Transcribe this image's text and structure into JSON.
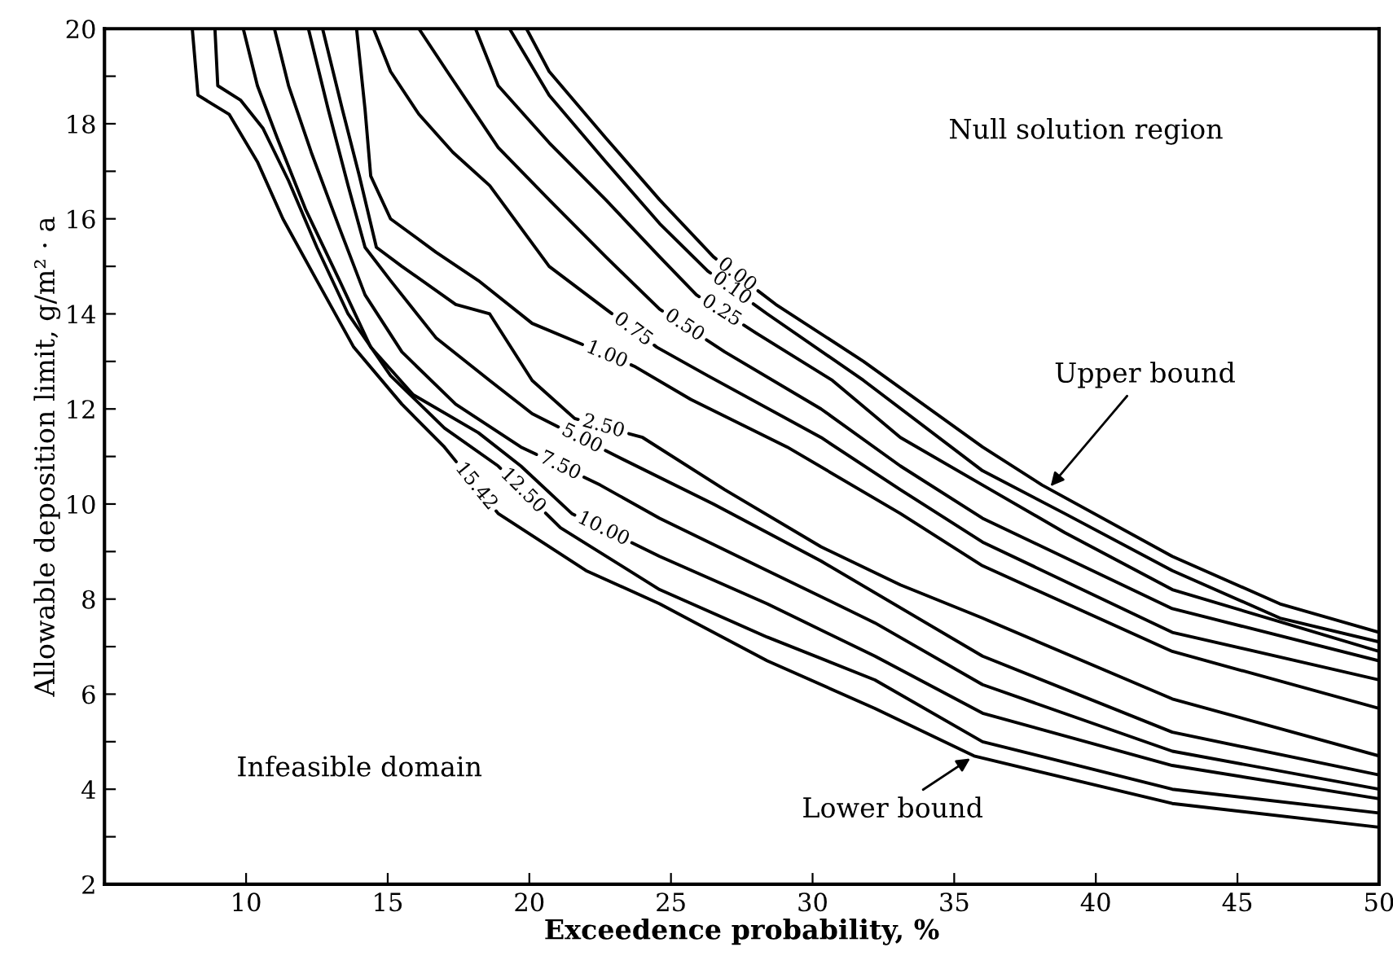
{
  "chart_data": {
    "type": "line",
    "xlabel": "Exceedence probability, %",
    "ylabel": "Allowable deposition limit, g/m² · a",
    "xlim": [
      5,
      50
    ],
    "ylim": [
      2,
      20
    ],
    "xticks": [
      10,
      15,
      20,
      25,
      30,
      35,
      40,
      45,
      50
    ],
    "yticks": [
      2,
      {
        "value": 3,
        "label": null
      },
      4,
      {
        "value": 5,
        "label": null
      },
      6,
      {
        "value": 7,
        "label": null
      },
      8,
      {
        "value": 9,
        "label": null
      },
      10,
      {
        "value": 11,
        "label": null
      },
      12,
      {
        "value": 13,
        "label": null
      },
      14,
      {
        "value": 15,
        "label": null
      },
      16,
      {
        "value": 17,
        "label": null
      },
      18,
      {
        "value": 19,
        "label": null
      },
      20
    ],
    "grid": false,
    "legend": false,
    "marker": "none",
    "line_style": "solid",
    "series": [
      {
        "name": "0.00",
        "color": "#000000",
        "x": [
          19.9,
          20.7,
          22.7,
          24.6,
          26.5,
          28.7,
          31.8,
          36.0,
          38.1,
          42.7,
          46.5,
          50.0
        ],
        "values": [
          20.0,
          19.1,
          17.7,
          16.4,
          15.2,
          14.2,
          13.0,
          11.2,
          10.4,
          8.9,
          7.9,
          7.3
        ]
      },
      {
        "name": "0.10",
        "color": "#000000",
        "x": [
          19.3,
          20.7,
          22.7,
          24.6,
          26.3,
          28.4,
          31.8,
          36.0,
          38.9,
          42.7,
          46.5,
          50.0
        ],
        "values": [
          20.0,
          18.6,
          17.2,
          15.9,
          14.9,
          14.0,
          12.6,
          10.7,
          9.8,
          8.6,
          7.6,
          7.1
        ]
      },
      {
        "name": "0.25",
        "color": "#000000",
        "x": [
          18.1,
          18.9,
          20.7,
          22.7,
          24.6,
          25.9,
          28.0,
          30.7,
          33.1,
          36.0,
          38.9,
          42.7,
          50.0
        ],
        "values": [
          20.0,
          18.8,
          17.6,
          16.4,
          15.2,
          14.4,
          13.6,
          12.6,
          11.4,
          10.4,
          9.4,
          8.2,
          6.9
        ]
      },
      {
        "name": "0.50",
        "color": "#000000",
        "x": [
          16.1,
          17.1,
          18.0,
          18.9,
          20.7,
          22.7,
          24.6,
          26.9,
          30.3,
          33.1,
          36.0,
          42.7,
          50.0
        ],
        "values": [
          20.0,
          19.1,
          18.3,
          17.5,
          16.4,
          15.2,
          14.1,
          13.2,
          12.0,
          10.8,
          9.7,
          7.8,
          6.7
        ]
      },
      {
        "name": "0.75",
        "color": "#000000",
        "x": [
          14.5,
          15.1,
          16.1,
          17.3,
          18.6,
          20.7,
          22.7,
          24.5,
          26.3,
          30.3,
          33.1,
          36.0,
          42.7,
          50.0
        ],
        "values": [
          20.0,
          19.1,
          18.2,
          17.4,
          16.7,
          15.0,
          14.1,
          13.3,
          12.7,
          11.4,
          10.3,
          9.2,
          7.3,
          6.3
        ]
      },
      {
        "name": "1.00",
        "color": "#000000",
        "x": [
          13.9,
          14.2,
          14.4,
          15.1,
          16.7,
          18.2,
          20.1,
          23.7,
          25.7,
          29.1,
          33.1,
          36.0,
          42.7,
          50.0
        ],
        "values": [
          20.0,
          18.3,
          16.9,
          16.0,
          15.3,
          14.7,
          13.8,
          12.9,
          12.2,
          11.2,
          9.8,
          8.7,
          6.9,
          5.7
        ]
      },
      {
        "name": "2.50",
        "color": "#000000",
        "x": [
          12.7,
          13.4,
          14.0,
          14.6,
          15.5,
          17.4,
          18.6,
          20.1,
          21.6,
          24.0,
          26.9,
          30.3,
          33.1,
          36.0,
          42.7,
          50.0
        ],
        "values": [
          20.0,
          18.3,
          16.9,
          15.4,
          15.0,
          14.2,
          14.0,
          12.6,
          11.8,
          11.4,
          10.3,
          9.1,
          8.3,
          7.6,
          5.9,
          4.7
        ]
      },
      {
        "name": "5.00",
        "color": "#000000",
        "x": [
          12.2,
          12.9,
          13.6,
          14.2,
          15.1,
          16.7,
          18.6,
          20.1,
          23.1,
          26.5,
          30.3,
          36.0,
          42.7,
          50.0
        ],
        "values": [
          20.0,
          18.3,
          16.7,
          15.4,
          14.7,
          13.5,
          12.6,
          11.9,
          11.0,
          10.0,
          8.8,
          6.8,
          5.2,
          4.3
        ]
      },
      {
        "name": "7.50",
        "color": "#000000",
        "x": [
          11.0,
          11.5,
          12.3,
          13.3,
          14.2,
          15.5,
          17.4,
          19.7,
          22.5,
          24.6,
          28.4,
          32.2,
          36.0,
          42.7,
          50.0
        ],
        "values": [
          20.0,
          18.8,
          17.4,
          15.8,
          14.4,
          13.2,
          12.1,
          11.2,
          10.4,
          9.7,
          8.6,
          7.5,
          6.2,
          4.8,
          4.0
        ]
      },
      {
        "name": "10.00",
        "color": "#000000",
        "x": [
          9.9,
          10.4,
          11.1,
          12.1,
          13.3,
          14.4,
          15.9,
          18.2,
          19.7,
          21.5,
          24.6,
          28.4,
          32.2,
          36.0,
          42.7,
          50.0
        ],
        "values": [
          20.0,
          18.8,
          17.7,
          16.2,
          14.7,
          13.3,
          12.3,
          11.5,
          10.8,
          9.8,
          8.9,
          7.9,
          6.8,
          5.6,
          4.5,
          3.8
        ]
      },
      {
        "name": "12.50",
        "color": "#000000",
        "x": [
          8.9,
          9.0,
          9.8,
          10.6,
          11.5,
          12.5,
          13.6,
          15.1,
          17.0,
          18.9,
          21.1,
          24.6,
          28.4,
          32.2,
          36.0,
          42.7,
          50.0
        ],
        "values": [
          20.0,
          18.8,
          18.5,
          17.9,
          16.8,
          15.4,
          14.0,
          12.7,
          11.6,
          10.8,
          9.5,
          8.2,
          7.2,
          6.3,
          5.0,
          4.0,
          3.5
        ]
      },
      {
        "name": "15.42",
        "color": "#000000",
        "x": [
          8.1,
          8.3,
          9.4,
          10.4,
          11.3,
          12.5,
          13.8,
          15.5,
          17.0,
          18.9,
          22.0,
          24.6,
          28.4,
          32.2,
          35.7,
          42.7,
          50.0
        ],
        "values": [
          20.0,
          18.6,
          18.2,
          17.2,
          16.0,
          14.7,
          13.3,
          12.1,
          11.2,
          9.8,
          8.6,
          7.9,
          6.7,
          5.7,
          4.7,
          3.7,
          3.2
        ]
      }
    ],
    "annotations": [
      "Null solution region",
      "Infeasible domain",
      {
        "text": "Upper bound",
        "x": 38.3,
        "y": 10.3
      },
      {
        "text": "Lower bound",
        "x": 35.7,
        "y": 4.7
      }
    ]
  }
}
